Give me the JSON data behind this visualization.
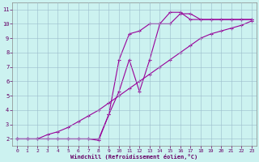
{
  "xlabel": "Windchill (Refroidissement éolien,°C)",
  "background_color": "#ccf2f0",
  "line_color": "#990099",
  "grid_color": "#aabbcc",
  "xlim": [
    -0.5,
    23.5
  ],
  "ylim": [
    1.5,
    11.5
  ],
  "yticks": [
    2,
    3,
    4,
    5,
    6,
    7,
    8,
    9,
    10,
    11
  ],
  "xticks": [
    0,
    1,
    2,
    3,
    4,
    5,
    6,
    7,
    8,
    9,
    10,
    11,
    12,
    13,
    14,
    15,
    16,
    17,
    18,
    19,
    20,
    21,
    22,
    23
  ],
  "line1_x": [
    0,
    1,
    2,
    3,
    4,
    5,
    6,
    7,
    8,
    9,
    10,
    11,
    12,
    13,
    14,
    15,
    16,
    17,
    18,
    19,
    20,
    21,
    22,
    23
  ],
  "line1_y": [
    2.0,
    2.0,
    2.0,
    2.0,
    2.0,
    2.0,
    2.0,
    2.0,
    2.0,
    3.7,
    7.5,
    9.3,
    9.5,
    10.0,
    10.0,
    10.8,
    10.8,
    10.3,
    10.3,
    10.3,
    10.3,
    10.3,
    10.3,
    10.3
  ],
  "line2_x": [
    0,
    1,
    2,
    3,
    4,
    5,
    6,
    7,
    8,
    9,
    10,
    11,
    12,
    13,
    14,
    15,
    16,
    17,
    18,
    19,
    20,
    21,
    22,
    23
  ],
  "line2_y": [
    2.0,
    2.0,
    2.0,
    2.0,
    2.0,
    2.0,
    2.0,
    2.0,
    1.9,
    3.7,
    5.3,
    7.5,
    5.3,
    7.5,
    10.0,
    10.0,
    10.7,
    10.7,
    10.3,
    10.3,
    10.3,
    10.3,
    10.3,
    10.3
  ],
  "line3_x": [
    0,
    1,
    2,
    3,
    4,
    5,
    6,
    7,
    8,
    9,
    10,
    11,
    12,
    13,
    14,
    15,
    16,
    17,
    18,
    19,
    20,
    21,
    22,
    23
  ],
  "line3_y": [
    2.0,
    2.0,
    2.0,
    2.3,
    2.5,
    2.8,
    3.2,
    3.6,
    4.0,
    4.5,
    5.0,
    5.5,
    6.0,
    6.5,
    7.0,
    7.5,
    8.0,
    8.5,
    9.0,
    9.3,
    9.5,
    9.7,
    9.9,
    10.2
  ]
}
